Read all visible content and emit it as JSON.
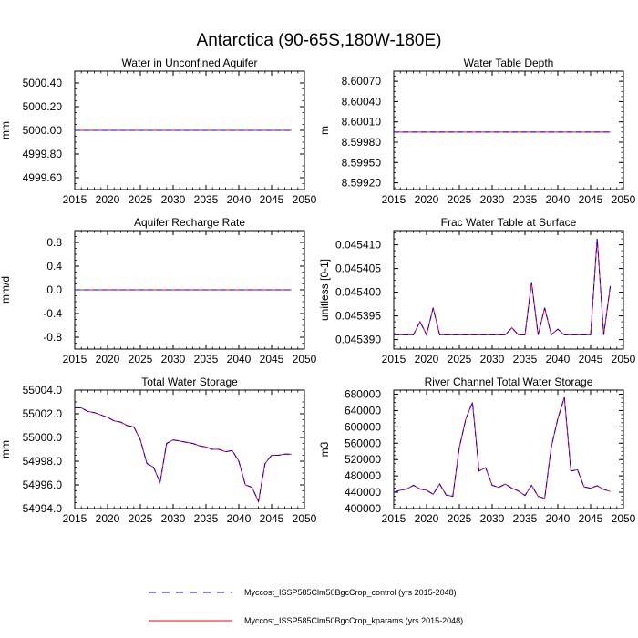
{
  "figure": {
    "title": "Antarctica (90-65S,180W-180E)"
  },
  "legend": {
    "position": "bottom-center",
    "items": [
      {
        "label": "Myccost_ISSP585Clm50BgcCrop_control (yrs 2015-2048)",
        "color": "#0000ff",
        "style": "dashed"
      },
      {
        "label": "Myccost_ISSP585Clm50BgcCrop_kparams (yrs 2015-2048)",
        "color": "#ff0000",
        "style": "solid"
      }
    ]
  },
  "chart_data": [
    {
      "type": "line",
      "title": "Water in Unconfined Aquifer",
      "xlabel": "",
      "ylabel": "mm",
      "xlim": [
        2015,
        2050
      ],
      "ylim": [
        4999.5,
        5000.5
      ],
      "xticks": [
        2015,
        2020,
        2025,
        2030,
        2035,
        2040,
        2045,
        2050
      ],
      "yticks": [
        4999.6,
        4999.8,
        5000.0,
        5000.2,
        5000.4
      ],
      "yticklabels": [
        "4999.60",
        "4999.80",
        "5000.00",
        "5000.20",
        "5000.40"
      ],
      "x_start": 2015,
      "series": [
        {
          "name": "Myccost_ISSP585Clm50BgcCrop_control (yrs 2015-2048)",
          "values": [
            5000,
            5000,
            5000,
            5000,
            5000,
            5000,
            5000,
            5000,
            5000,
            5000,
            5000,
            5000,
            5000,
            5000,
            5000,
            5000,
            5000,
            5000,
            5000,
            5000,
            5000,
            5000,
            5000,
            5000,
            5000,
            5000,
            5000,
            5000,
            5000,
            5000,
            5000,
            5000,
            5000,
            5000
          ]
        },
        {
          "name": "Myccost_ISSP585Clm50BgcCrop_kparams (yrs 2015-2048)",
          "values": [
            5000,
            5000,
            5000,
            5000,
            5000,
            5000,
            5000,
            5000,
            5000,
            5000,
            5000,
            5000,
            5000,
            5000,
            5000,
            5000,
            5000,
            5000,
            5000,
            5000,
            5000,
            5000,
            5000,
            5000,
            5000,
            5000,
            5000,
            5000,
            5000,
            5000,
            5000,
            5000,
            5000,
            5000
          ]
        }
      ]
    },
    {
      "type": "line",
      "title": "Water Table Depth",
      "xlabel": "",
      "ylabel": "m",
      "xlim": [
        2015,
        2050
      ],
      "ylim": [
        8.5991,
        8.60085
      ],
      "xticks": [
        2015,
        2020,
        2025,
        2030,
        2035,
        2040,
        2045,
        2050
      ],
      "yticks": [
        8.5992,
        8.5995,
        8.5998,
        8.6001,
        8.6004,
        8.6007
      ],
      "yticklabels": [
        "8.59920",
        "8.59950",
        "8.59980",
        "8.60010",
        "8.60040",
        "8.60070"
      ],
      "x_start": 2015,
      "series": [
        {
          "name": "Myccost_ISSP585Clm50BgcCrop_control (yrs 2015-2048)",
          "values": [
            8.59995,
            8.59995,
            8.59995,
            8.59995,
            8.59995,
            8.59995,
            8.59995,
            8.59995,
            8.59995,
            8.59995,
            8.59995,
            8.59995,
            8.59995,
            8.59995,
            8.59995,
            8.59995,
            8.59995,
            8.59995,
            8.59995,
            8.59995,
            8.59995,
            8.59995,
            8.59995,
            8.59995,
            8.59995,
            8.59995,
            8.59995,
            8.59995,
            8.59995,
            8.59995,
            8.59995,
            8.59995,
            8.59995,
            8.59995
          ]
        },
        {
          "name": "Myccost_ISSP585Clm50BgcCrop_kparams (yrs 2015-2048)",
          "values": [
            8.59995,
            8.59995,
            8.59995,
            8.59995,
            8.59995,
            8.59995,
            8.59995,
            8.59995,
            8.59995,
            8.59995,
            8.59995,
            8.59995,
            8.59995,
            8.59995,
            8.59995,
            8.59995,
            8.59995,
            8.59995,
            8.59995,
            8.59995,
            8.59995,
            8.59995,
            8.59995,
            8.59995,
            8.59995,
            8.59995,
            8.59995,
            8.59995,
            8.59995,
            8.59995,
            8.59995,
            8.59995,
            8.59995,
            8.59995
          ]
        }
      ]
    },
    {
      "type": "line",
      "title": "Aquifer Recharge Rate",
      "xlabel": "",
      "ylabel": "mm/d",
      "xlim": [
        2015,
        2050
      ],
      "ylim": [
        -1.0,
        1.0
      ],
      "xticks": [
        2015,
        2020,
        2025,
        2030,
        2035,
        2040,
        2045,
        2050
      ],
      "yticks": [
        -0.8,
        -0.4,
        0.0,
        0.4,
        0.8
      ],
      "yticklabels": [
        "-0.8",
        "-0.4",
        "0.0",
        "0.4",
        "0.8"
      ],
      "x_start": 2015,
      "series": [
        {
          "name": "Myccost_ISSP585Clm50BgcCrop_control (yrs 2015-2048)",
          "values": [
            0,
            0,
            0,
            0,
            0,
            0,
            0,
            0,
            0,
            0,
            0,
            0,
            0,
            0,
            0,
            0,
            0,
            0,
            0,
            0,
            0,
            0,
            0,
            0,
            0,
            0,
            0,
            0,
            0,
            0,
            0,
            0,
            0,
            0
          ]
        },
        {
          "name": "Myccost_ISSP585Clm50BgcCrop_kparams (yrs 2015-2048)",
          "values": [
            0,
            0,
            0,
            0,
            0,
            0,
            0,
            0,
            0,
            0,
            0,
            0,
            0,
            0,
            0,
            0,
            0,
            0,
            0,
            0,
            0,
            0,
            0,
            0,
            0,
            0,
            0,
            0,
            0,
            0,
            0,
            0,
            0,
            0
          ]
        }
      ]
    },
    {
      "type": "line",
      "title": "Frac Water Table at Surface",
      "xlabel": "",
      "ylabel": "unitless [0-1]",
      "xlim": [
        2015,
        2050
      ],
      "ylim": [
        0.045388,
        0.045413
      ],
      "xticks": [
        2015,
        2020,
        2025,
        2030,
        2035,
        2040,
        2045,
        2050
      ],
      "yticks": [
        0.04539,
        0.045395,
        0.0454,
        0.045405,
        0.04541
      ],
      "yticklabels": [
        "0.045390",
        "0.045395",
        "0.045400",
        "0.045405",
        "0.045410"
      ],
      "x_start": 2015,
      "series": [
        {
          "name": "Myccost_ISSP585Clm50BgcCrop_control (yrs 2015-2048)",
          "values": [
            0.045391,
            0.045391,
            0.045391,
            0.045391,
            0.0453938,
            0.045391,
            0.0453967,
            0.045391,
            0.045391,
            0.045391,
            0.045391,
            0.045391,
            0.045391,
            0.045391,
            0.045391,
            0.045391,
            0.045391,
            0.045391,
            0.0453925,
            0.045391,
            0.045391,
            0.0454021,
            0.045391,
            0.0453967,
            0.045391,
            0.0453922,
            0.045391,
            0.045391,
            0.045391,
            0.045391,
            0.045391,
            0.0454113,
            0.045391,
            0.0454013
          ]
        },
        {
          "name": "Myccost_ISSP585Clm50BgcCrop_kparams (yrs 2015-2048)",
          "values": [
            0.045391,
            0.045391,
            0.045391,
            0.045391,
            0.0453938,
            0.045391,
            0.0453967,
            0.045391,
            0.045391,
            0.045391,
            0.045391,
            0.045391,
            0.045391,
            0.045391,
            0.045391,
            0.045391,
            0.045391,
            0.045391,
            0.0453925,
            0.045391,
            0.045391,
            0.0454021,
            0.045391,
            0.0453967,
            0.045391,
            0.0453922,
            0.045391,
            0.045391,
            0.045391,
            0.045391,
            0.045391,
            0.0454113,
            0.045391,
            0.0454013
          ]
        }
      ]
    },
    {
      "type": "line",
      "title": "Total Water Storage",
      "xlabel": "",
      "ylabel": "mm",
      "xlim": [
        2015,
        2050
      ],
      "ylim": [
        54994.0,
        55004.0
      ],
      "xticks": [
        2015,
        2020,
        2025,
        2030,
        2035,
        2040,
        2045,
        2050
      ],
      "yticks": [
        54994,
        54996,
        54998,
        55000,
        55002,
        55004
      ],
      "yticklabels": [
        "54994.0",
        "54996.0",
        "54998.0",
        "55000.0",
        "55002.0",
        "55004.0"
      ],
      "x_start": 2015,
      "series": [
        {
          "name": "Myccost_ISSP585Clm50BgcCrop_control (yrs 2015-2048)",
          "values": [
            55002.5,
            55002.5,
            55002.2,
            55002.1,
            55001.9,
            55001.7,
            55001.4,
            55001.3,
            55001.0,
            55000.9,
            54999.8,
            54997.8,
            54997.5,
            54996.2,
            54999.5,
            54999.8,
            54999.7,
            54999.6,
            54999.5,
            54999.3,
            54999.2,
            54999.0,
            54999.0,
            54998.8,
            54998.9,
            54998.0,
            54996.0,
            54995.8,
            54994.6,
            54997.8,
            54998.5,
            54998.5,
            54998.6,
            54998.6
          ]
        },
        {
          "name": "Myccost_ISSP585Clm50BgcCrop_kparams (yrs 2015-2048)",
          "values": [
            55002.5,
            55002.5,
            55002.2,
            55002.1,
            55001.9,
            55001.7,
            55001.4,
            55001.3,
            55001.0,
            55000.9,
            54999.8,
            54997.8,
            54997.5,
            54996.2,
            54999.5,
            54999.8,
            54999.7,
            54999.6,
            54999.5,
            54999.3,
            54999.2,
            54999.0,
            54999.0,
            54998.8,
            54998.9,
            54998.0,
            54996.0,
            54995.8,
            54994.6,
            54997.8,
            54998.5,
            54998.5,
            54998.6,
            54998.6
          ]
        }
      ]
    },
    {
      "type": "line",
      "title": "River Channel Total Water Storage",
      "xlabel": "",
      "ylabel": "m3",
      "xlim": [
        2015,
        2050
      ],
      "ylim": [
        400000,
        690000
      ],
      "xticks": [
        2015,
        2020,
        2025,
        2030,
        2035,
        2040,
        2045,
        2050
      ],
      "yticks": [
        400000,
        440000,
        480000,
        520000,
        560000,
        600000,
        640000,
        680000
      ],
      "yticklabels": [
        "400000",
        "440000",
        "480000",
        "520000",
        "560000",
        "600000",
        "640000",
        "680000"
      ],
      "x_start": 2015,
      "series": [
        {
          "name": "Myccost_ISSP585Clm50BgcCrop_control (yrs 2015-2048)",
          "values": [
            440000,
            445000,
            448000,
            457000,
            448000,
            445000,
            435000,
            460000,
            433000,
            430000,
            550000,
            620000,
            660000,
            492000,
            500000,
            457000,
            452000,
            460000,
            450000,
            443000,
            432000,
            457000,
            430000,
            425000,
            550000,
            620000,
            672000,
            492000,
            495000,
            453000,
            450000,
            456000,
            447000,
            442000
          ]
        },
        {
          "name": "Myccost_ISSP585Clm50BgcCrop_kparams (yrs 2015-2048)",
          "values": [
            440000,
            445000,
            448000,
            457000,
            448000,
            445000,
            435000,
            460000,
            433000,
            430000,
            550000,
            620000,
            660000,
            492000,
            500000,
            457000,
            452000,
            460000,
            450000,
            443000,
            432000,
            457000,
            430000,
            425000,
            550000,
            620000,
            672000,
            492000,
            495000,
            453000,
            450000,
            456000,
            447000,
            442000
          ]
        }
      ]
    }
  ]
}
